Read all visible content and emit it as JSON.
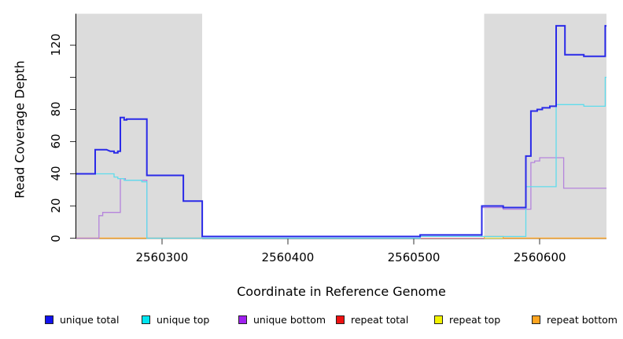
{
  "figure": {
    "x_axis_title": "Coordinate in Reference Genome",
    "y_axis_title": "Read Coverage Depth"
  },
  "legend": {
    "items": [
      {
        "name": "unique-total",
        "label": "unique total",
        "swatch_color": "#1212EE"
      },
      {
        "name": "unique-top",
        "label": "unique top",
        "swatch_color": "#00E5F0"
      },
      {
        "name": "unique-bottom",
        "label": "unique bottom",
        "swatch_color": "#A020F0"
      },
      {
        "name": "repeat-total",
        "label": "repeat total",
        "swatch_color": "#EE1111"
      },
      {
        "name": "repeat-top",
        "label": "repeat top",
        "swatch_color": "#F2F200"
      },
      {
        "name": "repeat-bottom",
        "label": "repeat bottom",
        "swatch_color": "#FFA520"
      }
    ]
  },
  "chart_data": {
    "type": "line",
    "step": true,
    "title": "",
    "xlabel": "Coordinate in Reference Genome",
    "ylabel": "Read Coverage Depth",
    "xlim": [
      2560232,
      2560653
    ],
    "ylim": [
      0,
      139.5
    ],
    "grid": false,
    "plot_background": "#FFFFFF",
    "shaded_band_color": "#DCDCDC",
    "shaded_regions": [
      {
        "x0": 2560232,
        "x1": 2560332
      },
      {
        "x0": 2560556,
        "x1": 2560653
      }
    ],
    "x_ticks": [
      {
        "v": 2560300,
        "label": "2560300"
      },
      {
        "v": 2560400,
        "label": "2560400"
      },
      {
        "v": 2560500,
        "label": "2560500"
      },
      {
        "v": 2560600,
        "label": "2560600"
      }
    ],
    "y_ticks": [
      {
        "v": 0,
        "label": "0"
      },
      {
        "v": 20,
        "label": "20"
      },
      {
        "v": 40,
        "label": "40"
      },
      {
        "v": 60,
        "label": "60"
      },
      {
        "v": 80,
        "label": "80"
      },
      {
        "v": 100,
        "label": ""
      },
      {
        "v": 120,
        "label": "120"
      }
    ],
    "series": [
      {
        "name": "repeat total",
        "color": "#F2909F",
        "width": 1.3,
        "segments": [
          [
            [
              2560232,
              0
            ],
            [
              2560332,
              0
            ]
          ],
          [
            [
              2560505,
              0
            ],
            [
              2560653,
              0
            ]
          ]
        ]
      },
      {
        "name": "repeat top",
        "color": "#EDED55",
        "width": 1.3,
        "segments": [
          [
            [
              2560232,
              0
            ],
            [
              2560332,
              0
            ]
          ],
          [
            [
              2560556,
              0
            ],
            [
              2560653,
              0
            ]
          ]
        ]
      },
      {
        "name": "repeat bottom",
        "color": "#FFA424",
        "width": 1.3,
        "segments": [
          [
            [
              2560232,
              0
            ],
            [
              2560332,
              0
            ]
          ],
          [
            [
              2560556,
              0
            ],
            [
              2560556,
              1
            ],
            [
              2560571,
              1
            ],
            [
              2560571,
              0
            ],
            [
              2560653,
              0
            ]
          ]
        ]
      },
      {
        "name": "unique bottom",
        "color": "#B584DC",
        "width": 1.3,
        "segments": [
          [
            [
              2560232,
              0
            ],
            [
              2560250,
              0
            ],
            [
              2560250,
              14
            ],
            [
              2560253,
              14
            ],
            [
              2560253,
              16
            ],
            [
              2560267,
              16
            ],
            [
              2560267,
              37
            ],
            [
              2560271,
              37
            ],
            [
              2560271,
              36
            ],
            [
              2560288,
              36
            ],
            [
              2560288,
              0
            ],
            [
              2560505,
              0
            ],
            [
              2560505,
              1
            ],
            [
              2560554,
              1
            ],
            [
              2560554,
              19
            ],
            [
              2560571,
              19
            ],
            [
              2560571,
              18
            ],
            [
              2560593,
              18
            ],
            [
              2560593,
              47
            ],
            [
              2560596,
              47
            ],
            [
              2560596,
              48
            ],
            [
              2560600,
              48
            ],
            [
              2560600,
              50
            ],
            [
              2560619,
              50
            ],
            [
              2560619,
              31
            ],
            [
              2560653,
              31
            ]
          ]
        ]
      },
      {
        "name": "unique top",
        "color": "#5FDCEC",
        "width": 1.3,
        "segments": [
          [
            [
              2560232,
              40
            ],
            [
              2560262,
              40
            ],
            [
              2560262,
              38
            ],
            [
              2560265,
              38
            ],
            [
              2560265,
              37
            ],
            [
              2560270,
              37
            ],
            [
              2560270,
              36
            ],
            [
              2560284,
              36
            ],
            [
              2560284,
              35
            ],
            [
              2560288,
              35
            ],
            [
              2560288,
              0
            ],
            [
              2560505,
              0
            ],
            [
              2560505,
              1
            ],
            [
              2560589,
              1
            ],
            [
              2560589,
              32
            ],
            [
              2560613,
              32
            ],
            [
              2560613,
              83
            ],
            [
              2560635,
              83
            ],
            [
              2560635,
              82
            ],
            [
              2560652,
              82
            ],
            [
              2560652,
              100
            ],
            [
              2560653,
              100
            ]
          ]
        ]
      },
      {
        "name": "unique total",
        "color": "#2A2AE8",
        "width": 2,
        "segments": [
          [
            [
              2560232,
              40
            ],
            [
              2560247,
              40
            ],
            [
              2560247,
              55
            ],
            [
              2560256,
              55
            ],
            [
              2560259,
              54
            ],
            [
              2560262,
              54
            ],
            [
              2560262,
              53
            ],
            [
              2560265,
              53
            ],
            [
              2560265,
              54
            ],
            [
              2560267,
              54
            ],
            [
              2560267,
              75
            ],
            [
              2560270,
              75
            ],
            [
              2560270,
              73.5
            ],
            [
              2560272,
              73.5
            ],
            [
              2560272,
              74
            ],
            [
              2560288,
              74
            ],
            [
              2560288,
              39
            ],
            [
              2560317,
              39
            ],
            [
              2560317,
              23
            ],
            [
              2560332,
              23
            ],
            [
              2560332,
              1
            ],
            [
              2560505,
              1
            ],
            [
              2560505,
              2
            ],
            [
              2560554,
              2
            ],
            [
              2560554,
              20
            ],
            [
              2560571,
              20
            ],
            [
              2560571,
              19
            ],
            [
              2560589,
              19
            ],
            [
              2560589,
              51
            ],
            [
              2560593,
              51
            ],
            [
              2560593,
              79
            ],
            [
              2560598,
              79
            ],
            [
              2560598,
              80
            ],
            [
              2560602,
              80
            ],
            [
              2560602,
              81
            ],
            [
              2560608,
              81
            ],
            [
              2560608,
              82
            ],
            [
              2560613,
              82
            ],
            [
              2560613,
              132
            ],
            [
              2560620,
              132
            ],
            [
              2560620,
              114
            ],
            [
              2560635,
              114
            ],
            [
              2560635,
              113
            ],
            [
              2560652,
              113
            ],
            [
              2560652,
              132
            ],
            [
              2560653,
              132
            ]
          ]
        ]
      }
    ]
  }
}
